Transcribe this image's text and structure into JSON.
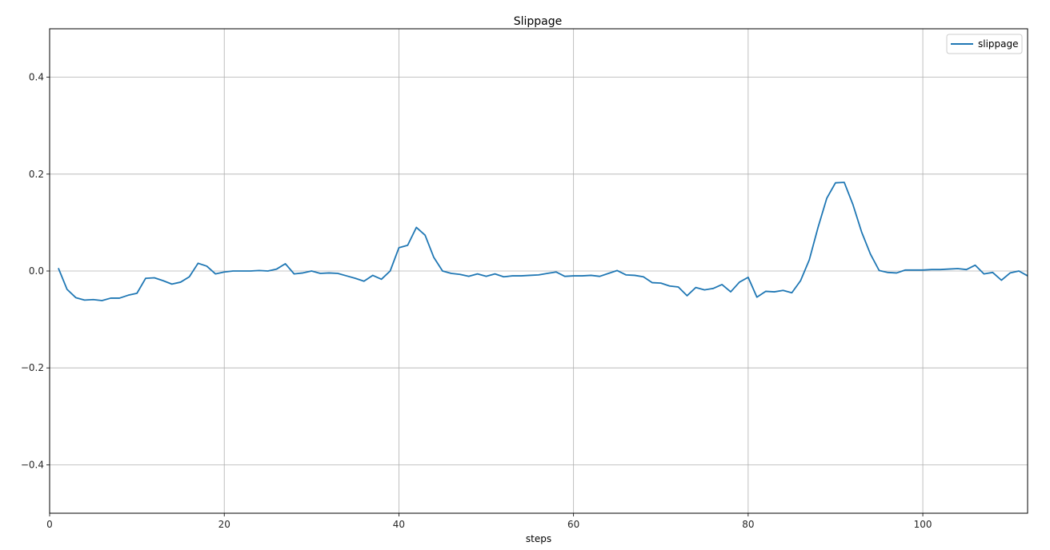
{
  "chart_data": {
    "type": "line",
    "title": "Slippage",
    "xlabel": "steps",
    "ylabel": "",
    "xlim": [
      0,
      112
    ],
    "ylim": [
      -0.5,
      0.5
    ],
    "xticks": [
      0,
      20,
      40,
      60,
      80,
      100
    ],
    "yticks": [
      -0.4,
      -0.2,
      0.0,
      0.2,
      0.4
    ],
    "ytick_labels": [
      "−0.4",
      "−0.2",
      "0.0",
      "0.2",
      "0.4"
    ],
    "grid": true,
    "legend_position": "top-right",
    "series": [
      {
        "name": "slippage",
        "color": "#1f77b4",
        "x": [
          1,
          2,
          3,
          4,
          5,
          6,
          7,
          8,
          9,
          10,
          11,
          12,
          13,
          14,
          15,
          16,
          17,
          18,
          19,
          20,
          21,
          22,
          23,
          24,
          25,
          26,
          27,
          28,
          29,
          30,
          31,
          32,
          33,
          34,
          35,
          36,
          37,
          38,
          39,
          40,
          41,
          42,
          43,
          44,
          45,
          46,
          47,
          48,
          49,
          50,
          51,
          52,
          53,
          54,
          55,
          56,
          57,
          58,
          59,
          60,
          61,
          62,
          63,
          64,
          65,
          66,
          67,
          68,
          69,
          70,
          71,
          72,
          73,
          74,
          75,
          76,
          77,
          78,
          79,
          80,
          81,
          82,
          83,
          84,
          85,
          86,
          87,
          88,
          89,
          90,
          91,
          92,
          93,
          94,
          95,
          96,
          97,
          98,
          99,
          100,
          101,
          102,
          103,
          104,
          105,
          106,
          107,
          108,
          109,
          110,
          111,
          112
        ],
        "values": [
          0.006,
          -0.038,
          -0.055,
          -0.06,
          -0.059,
          -0.061,
          -0.056,
          -0.056,
          -0.05,
          -0.046,
          -0.015,
          -0.014,
          -0.02,
          -0.027,
          -0.023,
          -0.012,
          0.016,
          0.01,
          -0.006,
          -0.002,
          0.0,
          0.0,
          0.0,
          0.001,
          0.0,
          0.004,
          0.015,
          -0.006,
          -0.004,
          0.0,
          -0.005,
          -0.004,
          -0.005,
          -0.01,
          -0.015,
          -0.021,
          -0.009,
          -0.017,
          0.0,
          0.048,
          0.053,
          0.09,
          0.074,
          0.028,
          0.0,
          -0.005,
          -0.007,
          -0.011,
          -0.006,
          -0.011,
          -0.006,
          -0.012,
          -0.01,
          -0.01,
          -0.009,
          -0.008,
          -0.005,
          -0.002,
          -0.011,
          -0.01,
          -0.01,
          -0.009,
          -0.011,
          -0.005,
          0.001,
          -0.008,
          -0.009,
          -0.012,
          -0.024,
          -0.025,
          -0.031,
          -0.033,
          -0.051,
          -0.034,
          -0.039,
          -0.036,
          -0.028,
          -0.043,
          -0.023,
          -0.013,
          -0.054,
          -0.042,
          -0.043,
          -0.04,
          -0.045,
          -0.02,
          0.023,
          0.09,
          0.15,
          0.182,
          0.183,
          0.137,
          0.08,
          0.035,
          0.001,
          -0.003,
          -0.004,
          0.002,
          0.002,
          0.002,
          0.003,
          0.003,
          0.004,
          0.005,
          0.003,
          0.012,
          -0.006,
          -0.003,
          -0.019,
          -0.004,
          0.0,
          -0.01
        ]
      }
    ]
  }
}
